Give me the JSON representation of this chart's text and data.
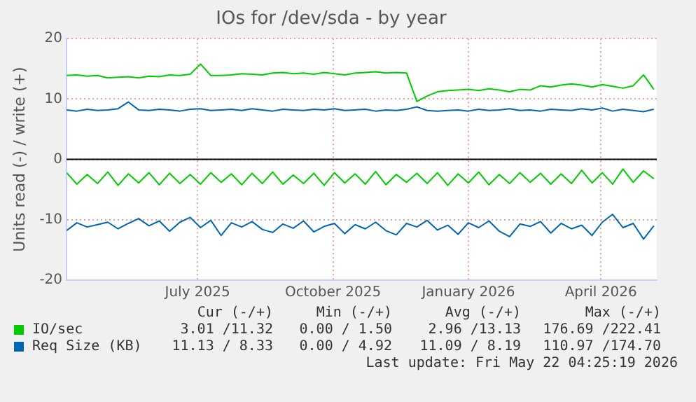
{
  "chart_data": {
    "type": "line",
    "title": "IOs for /dev/sda - by year",
    "ylabel": "Units read (-) / write (+)",
    "x": [
      "2025-04-18",
      "2025-04-25",
      "2025-05-02",
      "2025-05-09",
      "2025-05-16",
      "2025-05-23",
      "2025-05-30",
      "2025-06-06",
      "2025-06-13",
      "2025-06-20",
      "2025-06-27",
      "2025-07-04",
      "2025-07-11",
      "2025-07-18",
      "2025-07-25",
      "2025-08-01",
      "2025-08-08",
      "2025-08-15",
      "2025-08-22",
      "2025-08-29",
      "2025-09-05",
      "2025-09-12",
      "2025-09-19",
      "2025-09-26",
      "2025-10-03",
      "2025-10-10",
      "2025-10-17",
      "2025-10-24",
      "2025-10-31",
      "2025-11-07",
      "2025-11-14",
      "2025-11-21",
      "2025-11-28",
      "2025-12-05",
      "2025-12-12",
      "2025-12-19",
      "2025-12-26",
      "2026-01-02",
      "2026-01-09",
      "2026-01-16",
      "2026-01-23",
      "2026-01-30",
      "2026-02-06",
      "2026-02-13",
      "2026-02-20",
      "2026-02-27",
      "2026-03-06",
      "2026-03-13",
      "2026-03-20",
      "2026-03-27",
      "2026-04-03",
      "2026-04-10",
      "2026-04-17",
      "2026-04-24",
      "2026-05-01",
      "2026-05-08",
      "2026-05-15",
      "2026-05-22"
    ],
    "series": [
      {
        "name": "IO/sec",
        "color": "#00cc00",
        "values": [
          13.9,
          14.0,
          13.8,
          13.9,
          13.5,
          13.6,
          13.7,
          13.5,
          13.8,
          13.7,
          14.0,
          13.9,
          14.1,
          15.8,
          13.9,
          13.9,
          14.0,
          14.2,
          14.1,
          14.0,
          14.3,
          14.4,
          14.2,
          14.3,
          14.1,
          14.4,
          14.2,
          14.0,
          14.3,
          14.4,
          14.5,
          14.3,
          14.4,
          14.3,
          9.6,
          10.5,
          11.2,
          11.4,
          11.5,
          11.6,
          11.4,
          11.7,
          11.5,
          11.2,
          11.6,
          11.5,
          12.2,
          12.0,
          12.3,
          12.5,
          12.3,
          12.0,
          12.4,
          12.1,
          11.8,
          12.2,
          14.0,
          11.6
        ]
      },
      {
        "color": "#00cc00",
        "values": [
          -2.2,
          -4.1,
          -2.5,
          -4.0,
          -2.1,
          -4.3,
          -2.4,
          -3.9,
          -2.2,
          -4.2,
          -2.3,
          -4.0,
          -2.5,
          -4.1,
          -2.2,
          -3.8,
          -2.4,
          -4.2,
          -2.3,
          -4.0,
          -2.1,
          -4.1,
          -2.6,
          -4.0,
          -2.3,
          -4.3,
          -2.2,
          -3.9,
          -2.4,
          -4.1,
          -2.0,
          -4.2,
          -2.5,
          -3.8,
          -2.3,
          -4.0,
          -2.2,
          -4.3,
          -2.4,
          -3.9,
          -2.1,
          -4.2,
          -2.5,
          -4.0,
          -2.2,
          -3.8,
          -2.3,
          -4.1,
          -2.4,
          -4.0,
          -1.8,
          -3.9,
          -2.2,
          -4.1,
          -1.6,
          -3.8,
          -1.9,
          -3.2
        ]
      },
      {
        "name": "Req Size (KB)",
        "color": "#0066b3",
        "values": [
          8.2,
          8.0,
          8.3,
          8.1,
          8.2,
          8.4,
          9.5,
          8.2,
          8.1,
          8.3,
          8.2,
          8.0,
          8.3,
          8.4,
          8.1,
          8.2,
          8.3,
          8.1,
          8.4,
          8.2,
          8.0,
          8.3,
          8.2,
          8.1,
          8.3,
          8.2,
          8.4,
          8.1,
          8.2,
          8.3,
          8.0,
          8.2,
          8.1,
          8.3,
          8.7,
          8.1,
          8.0,
          8.1,
          8.2,
          8.0,
          8.3,
          8.1,
          8.2,
          8.4,
          8.1,
          8.2,
          8.0,
          8.3,
          8.2,
          8.1,
          8.4,
          8.2,
          8.5,
          8.0,
          8.3,
          8.1,
          7.9,
          8.3
        ]
      },
      {
        "color": "#0066b3",
        "values": [
          -11.8,
          -10.5,
          -11.2,
          -10.8,
          -10.4,
          -11.5,
          -10.6,
          -9.8,
          -11.0,
          -10.2,
          -11.9,
          -10.4,
          -9.6,
          -11.3,
          -10.1,
          -12.6,
          -10.5,
          -11.2,
          -10.3,
          -11.6,
          -12.1,
          -10.7,
          -11.4,
          -10.2,
          -12.0,
          -11.1,
          -10.6,
          -12.3,
          -10.8,
          -11.5,
          -10.4,
          -11.8,
          -12.5,
          -10.6,
          -11.2,
          -10.1,
          -11.7,
          -10.9,
          -12.4,
          -10.5,
          -11.3,
          -10.2,
          -11.9,
          -12.8,
          -10.7,
          -11.1,
          -10.3,
          -12.2,
          -10.6,
          -11.5,
          -10.9,
          -12.6,
          -10.4,
          -9.1,
          -11.3,
          -10.6,
          -13.2,
          -11.0
        ]
      }
    ],
    "xlim": [
      "2025-04-18",
      "2026-05-24"
    ],
    "xticks": [
      {
        "value": "2025-07-16",
        "label": "July 2025"
      },
      {
        "value": "2025-10-16",
        "label": "October 2025"
      },
      {
        "value": "2026-01-16",
        "label": "January 2026"
      },
      {
        "value": "2026-04-16",
        "label": "April 2026"
      }
    ],
    "ylim": [
      -20,
      20
    ],
    "yticks": [
      -20,
      -10,
      0,
      10,
      20
    ],
    "grid": true,
    "legend": "bottom",
    "marker": "none",
    "line_style": "solid",
    "ref_lines": [
      {
        "axis": "y",
        "value": 0,
        "color": "#000000"
      }
    ],
    "annotations": [
      "Cur (-/+)",
      "Min (-/+)",
      "Avg (-/+)",
      "Max (-/+)",
      "3.01 /11.32",
      "0.00 / 1.50",
      "2.96 /13.13",
      "176.69 /222.41",
      "11.13 / 8.33",
      "0.00 / 4.92",
      "11.09 / 8.19",
      "110.97 /174.70",
      "Last update: Fri May 22 04:25:19 2026"
    ]
  }
}
